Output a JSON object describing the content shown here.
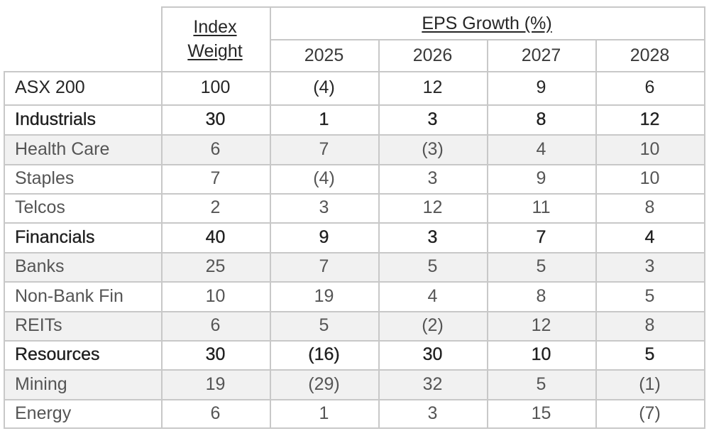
{
  "header": {
    "index_weight_line1": "Index",
    "index_weight_line2": "Weight",
    "eps_growth": "EPS Growth (%)",
    "years": [
      "2025",
      "2026",
      "2027",
      "2028"
    ]
  },
  "rows": [
    {
      "label": "ASX 200",
      "weight": "100",
      "eps": [
        "(4)",
        "12",
        "9",
        "6"
      ],
      "style": "top"
    },
    {
      "label": "Industrials",
      "weight": "30",
      "eps": [
        "1",
        "3",
        "8",
        "12"
      ],
      "style": "bold"
    },
    {
      "label": "Health Care",
      "weight": "6",
      "eps": [
        "7",
        "(3)",
        "4",
        "10"
      ],
      "style": "shaded"
    },
    {
      "label": "Staples",
      "weight": "7",
      "eps": [
        "(4)",
        "3",
        "9",
        "10"
      ],
      "style": "plain"
    },
    {
      "label": "Telcos",
      "weight": "2",
      "eps": [
        "3",
        "12",
        "11",
        "8"
      ],
      "style": "plain"
    },
    {
      "label": "Financials",
      "weight": "40",
      "eps": [
        "9",
        "3",
        "7",
        "4"
      ],
      "style": "bold"
    },
    {
      "label": "Banks",
      "weight": "25",
      "eps": [
        "7",
        "5",
        "5",
        "3"
      ],
      "style": "shaded"
    },
    {
      "label": "Non-Bank Fin",
      "weight": "10",
      "eps": [
        "19",
        "4",
        "8",
        "5"
      ],
      "style": "plain"
    },
    {
      "label": "REITs",
      "weight": "6",
      "eps": [
        "5",
        "(2)",
        "12",
        "8"
      ],
      "style": "shaded"
    },
    {
      "label": "Resources",
      "weight": "30",
      "eps": [
        "(16)",
        "30",
        "10",
        "5"
      ],
      "style": "bold"
    },
    {
      "label": "Mining",
      "weight": "19",
      "eps": [
        "(29)",
        "32",
        "5",
        "(1)"
      ],
      "style": "shaded"
    },
    {
      "label": "Energy",
      "weight": "6",
      "eps": [
        "1",
        "3",
        "15",
        "(7)"
      ],
      "style": "plain"
    }
  ]
}
